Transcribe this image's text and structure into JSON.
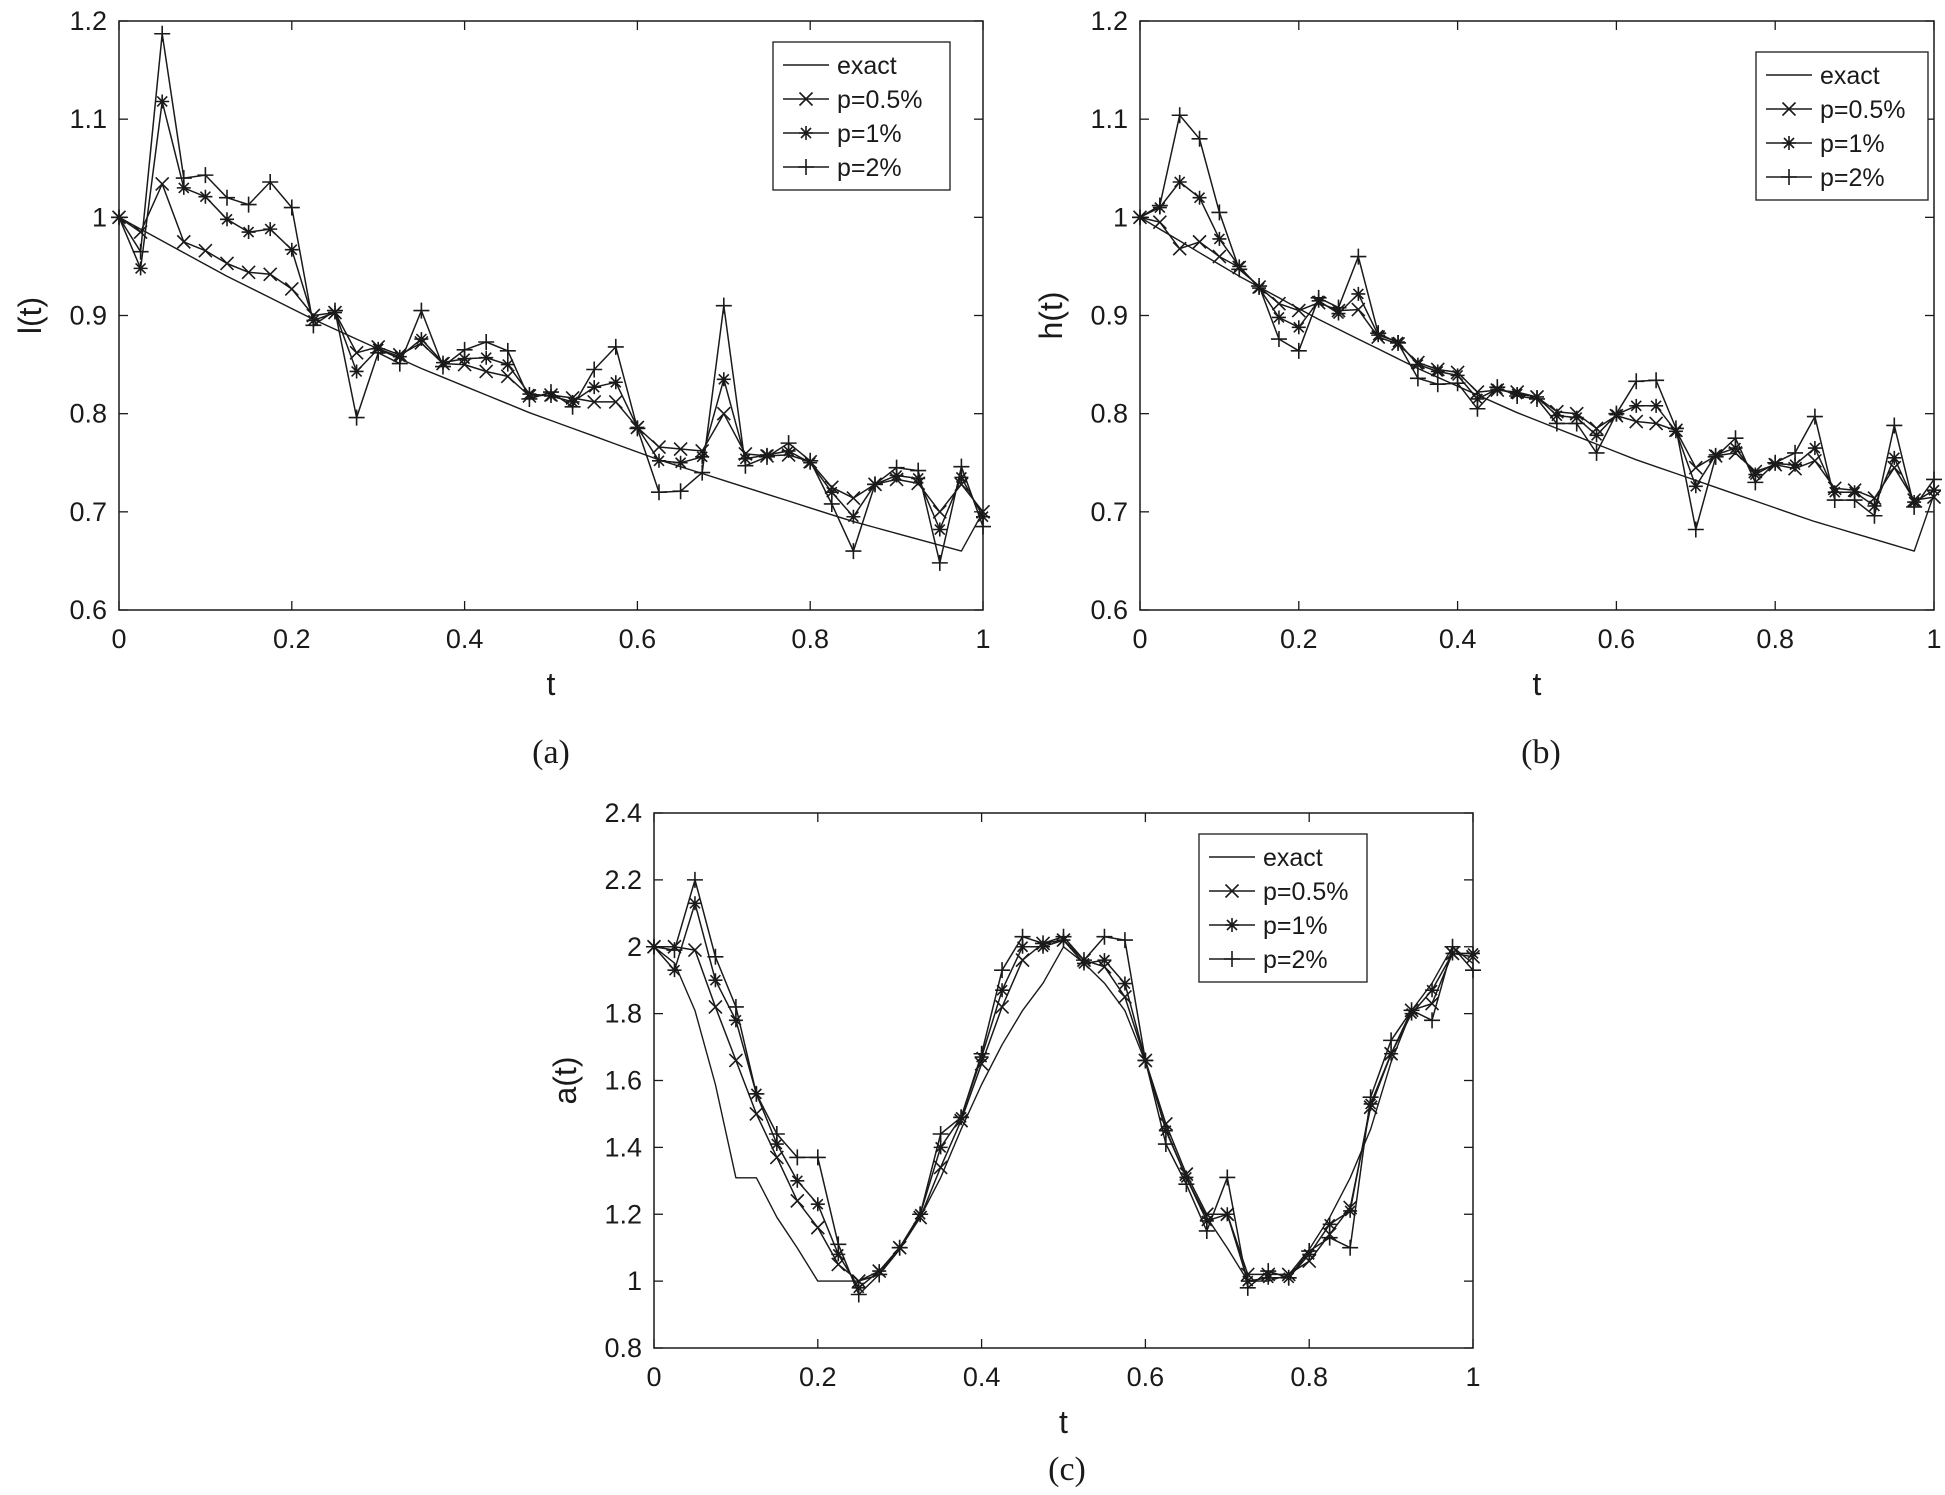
{
  "chart_data": [
    {
      "type": "line",
      "panel": "a",
      "caption": "(a)",
      "xlabel": "t",
      "ylabel": "l(t)",
      "xlim": [
        0,
        1
      ],
      "ylim": [
        0.6,
        1.2
      ],
      "xticks": [
        0,
        0.2,
        0.4,
        0.6,
        0.8,
        1
      ],
      "xtick_labels": [
        "0",
        "0.2",
        "0.4",
        "0.6",
        "0.8",
        "1"
      ],
      "yticks": [
        0.6,
        0.7,
        0.8,
        0.9,
        1.0,
        1.1,
        1.2
      ],
      "ytick_labels": [
        "0.6",
        "0.7",
        "0.8",
        "0.9",
        "1",
        "1.1",
        "1.2"
      ],
      "grid": false,
      "legend_position": "top-right",
      "x": [
        0,
        0.025,
        0.05,
        0.075,
        0.1,
        0.125,
        0.15,
        0.175,
        0.2,
        0.225,
        0.25,
        0.275,
        0.3,
        0.325,
        0.35,
        0.375,
        0.4,
        0.425,
        0.45,
        0.475,
        0.5,
        0.525,
        0.55,
        0.575,
        0.6,
        0.625,
        0.65,
        0.675,
        0.7,
        0.725,
        0.75,
        0.775,
        0.8,
        0.825,
        0.85,
        0.875,
        0.9,
        0.925,
        0.95,
        0.975,
        1.0
      ],
      "series": [
        {
          "name": "exact",
          "marker": "none",
          "values": [
            1.0,
            0.988,
            0.976,
            0.964,
            0.952,
            0.94,
            0.929,
            0.918,
            0.907,
            0.896,
            0.886,
            0.876,
            0.866,
            0.856,
            0.846,
            0.837,
            0.828,
            0.819,
            0.81,
            0.801,
            0.793,
            0.785,
            0.777,
            0.769,
            0.761,
            0.753,
            0.746,
            0.739,
            0.732,
            0.725,
            0.718,
            0.711,
            0.704,
            0.697,
            0.69,
            0.684,
            0.678,
            0.672,
            0.666,
            0.66,
            0.7
          ]
        },
        {
          "name": "p=0.5%",
          "marker": "x",
          "values": [
            1.0,
            0.985,
            1.034,
            0.975,
            0.966,
            0.953,
            0.944,
            0.942,
            0.927,
            0.9,
            0.903,
            0.862,
            0.868,
            0.86,
            0.872,
            0.851,
            0.85,
            0.843,
            0.838,
            0.818,
            0.819,
            0.816,
            0.812,
            0.812,
            0.786,
            0.766,
            0.764,
            0.762,
            0.8,
            0.759,
            0.757,
            0.758,
            0.751,
            0.725,
            0.714,
            0.728,
            0.733,
            0.729,
            0.7,
            0.728,
            0.7
          ]
        },
        {
          "name": "p=1%",
          "marker": "*",
          "values": [
            1.0,
            0.948,
            1.118,
            1.03,
            1.021,
            0.998,
            0.985,
            0.988,
            0.967,
            0.895,
            0.903,
            0.843,
            0.866,
            0.858,
            0.876,
            0.852,
            0.856,
            0.857,
            0.85,
            0.82,
            0.818,
            0.812,
            0.827,
            0.832,
            0.786,
            0.752,
            0.75,
            0.756,
            0.835,
            0.754,
            0.758,
            0.762,
            0.75,
            0.72,
            0.695,
            0.728,
            0.737,
            0.734,
            0.682,
            0.735,
            0.695
          ]
        },
        {
          "name": "p=2%",
          "marker": "+",
          "values": [
            1.0,
            0.965,
            1.187,
            1.04,
            1.043,
            1.02,
            1.013,
            1.036,
            1.01,
            0.89,
            0.905,
            0.796,
            0.862,
            0.851,
            0.905,
            0.848,
            0.865,
            0.873,
            0.864,
            0.815,
            0.822,
            0.807,
            0.845,
            0.868,
            0.785,
            0.72,
            0.721,
            0.74,
            0.91,
            0.747,
            0.756,
            0.77,
            0.752,
            0.708,
            0.66,
            0.728,
            0.745,
            0.742,
            0.648,
            0.746,
            0.685
          ]
        }
      ]
    },
    {
      "type": "line",
      "panel": "b",
      "caption": "(b)",
      "xlabel": "t",
      "ylabel": "h(t)",
      "xlim": [
        0,
        1
      ],
      "ylim": [
        0.6,
        1.2
      ],
      "xticks": [
        0,
        0.2,
        0.4,
        0.6,
        0.8,
        1
      ],
      "xtick_labels": [
        "0",
        "0.2",
        "0.4",
        "0.6",
        "0.8",
        "1"
      ],
      "yticks": [
        0.6,
        0.7,
        0.8,
        0.9,
        1.0,
        1.1,
        1.2
      ],
      "ytick_labels": [
        "0.6",
        "0.7",
        "0.8",
        "0.9",
        "1",
        "1.1",
        "1.2"
      ],
      "grid": false,
      "legend_position": "top-right",
      "x": [
        0,
        0.025,
        0.05,
        0.075,
        0.1,
        0.125,
        0.15,
        0.175,
        0.2,
        0.225,
        0.25,
        0.275,
        0.3,
        0.325,
        0.35,
        0.375,
        0.4,
        0.425,
        0.45,
        0.475,
        0.5,
        0.525,
        0.55,
        0.575,
        0.6,
        0.625,
        0.65,
        0.675,
        0.7,
        0.725,
        0.75,
        0.775,
        0.8,
        0.825,
        0.85,
        0.875,
        0.9,
        0.925,
        0.95,
        0.975,
        1.0
      ],
      "series": [
        {
          "name": "exact",
          "marker": "none",
          "values": [
            1.0,
            0.988,
            0.976,
            0.964,
            0.952,
            0.94,
            0.929,
            0.918,
            0.907,
            0.896,
            0.886,
            0.876,
            0.866,
            0.856,
            0.846,
            0.837,
            0.828,
            0.819,
            0.81,
            0.801,
            0.793,
            0.785,
            0.777,
            0.769,
            0.761,
            0.753,
            0.746,
            0.739,
            0.732,
            0.725,
            0.718,
            0.711,
            0.704,
            0.697,
            0.69,
            0.684,
            0.678,
            0.672,
            0.666,
            0.66,
            0.718
          ]
        },
        {
          "name": "p=0.5%",
          "marker": "x",
          "values": [
            1.0,
            0.995,
            0.968,
            0.975,
            0.96,
            0.949,
            0.929,
            0.912,
            0.905,
            0.913,
            0.905,
            0.906,
            0.878,
            0.871,
            0.852,
            0.845,
            0.842,
            0.822,
            0.824,
            0.822,
            0.817,
            0.802,
            0.8,
            0.785,
            0.798,
            0.792,
            0.79,
            0.783,
            0.745,
            0.757,
            0.76,
            0.741,
            0.748,
            0.744,
            0.752,
            0.724,
            0.722,
            0.714,
            0.745,
            0.712,
            0.715
          ]
        },
        {
          "name": "p=1%",
          "marker": "*",
          "values": [
            1.0,
            1.01,
            1.036,
            1.02,
            0.978,
            0.95,
            0.928,
            0.898,
            0.888,
            0.915,
            0.902,
            0.922,
            0.88,
            0.873,
            0.85,
            0.843,
            0.839,
            0.815,
            0.825,
            0.82,
            0.817,
            0.798,
            0.796,
            0.778,
            0.799,
            0.808,
            0.808,
            0.782,
            0.726,
            0.758,
            0.765,
            0.738,
            0.749,
            0.748,
            0.765,
            0.72,
            0.72,
            0.706,
            0.755,
            0.71,
            0.722
          ]
        },
        {
          "name": "p=2%",
          "marker": "+",
          "values": [
            1.0,
            1.012,
            1.104,
            1.08,
            1.005,
            0.947,
            0.93,
            0.876,
            0.864,
            0.918,
            0.908,
            0.96,
            0.882,
            0.872,
            0.836,
            0.83,
            0.831,
            0.805,
            0.827,
            0.818,
            0.815,
            0.79,
            0.79,
            0.76,
            0.8,
            0.833,
            0.834,
            0.785,
            0.682,
            0.756,
            0.775,
            0.73,
            0.75,
            0.76,
            0.797,
            0.712,
            0.712,
            0.696,
            0.788,
            0.705,
            0.733
          ]
        }
      ]
    },
    {
      "type": "line",
      "panel": "c",
      "caption": "(c)",
      "xlabel": "t",
      "ylabel": "a(t)",
      "xlim": [
        0,
        1
      ],
      "ylim": [
        0.8,
        2.4
      ],
      "xticks": [
        0,
        0.2,
        0.4,
        0.6,
        0.8,
        1
      ],
      "xtick_labels": [
        "0",
        "0.2",
        "0.4",
        "0.6",
        "0.8",
        "1"
      ],
      "yticks": [
        0.8,
        1.0,
        1.2,
        1.4,
        1.6,
        1.8,
        2.0,
        2.2,
        2.4
      ],
      "ytick_labels": [
        "0.8",
        "1",
        "1.2",
        "1.4",
        "1.6",
        "1.8",
        "2",
        "2.2",
        "2.4"
      ],
      "grid": false,
      "legend_position": "top-right",
      "x": [
        0,
        0.025,
        0.05,
        0.075,
        0.1,
        0.125,
        0.15,
        0.175,
        0.2,
        0.225,
        0.25,
        0.275,
        0.3,
        0.325,
        0.35,
        0.375,
        0.4,
        0.425,
        0.45,
        0.475,
        0.5,
        0.525,
        0.55,
        0.575,
        0.6,
        0.625,
        0.65,
        0.675,
        0.7,
        0.725,
        0.75,
        0.775,
        0.8,
        0.825,
        0.85,
        0.875,
        0.9,
        0.925,
        0.95,
        0.975,
        1.0
      ],
      "series": [
        {
          "name": "exact",
          "marker": "none",
          "values": [
            2.0,
            1.951,
            1.809,
            1.588,
            1.309,
            1.309,
            1.191,
            1.099,
            1.0,
            1.0,
            1.0,
            1.019,
            1.095,
            1.191,
            1.309,
            1.454,
            1.588,
            1.707,
            1.809,
            1.891,
            2.0,
            1.951,
            1.891,
            1.809,
            1.655,
            1.454,
            1.309,
            1.191,
            1.099,
            1.0,
            1.0,
            1.019,
            1.095,
            1.191,
            1.309,
            1.454,
            1.655,
            1.809,
            1.891,
            2.0,
            1.95
          ]
        },
        {
          "name": "p=0.5%",
          "marker": "x",
          "values": [
            2.0,
            2.0,
            1.99,
            1.82,
            1.66,
            1.5,
            1.37,
            1.24,
            1.16,
            1.05,
            1.0,
            1.03,
            1.1,
            1.19,
            1.34,
            1.48,
            1.65,
            1.82,
            1.96,
            2.01,
            2.02,
            1.96,
            1.94,
            1.85,
            1.66,
            1.47,
            1.32,
            1.2,
            1.2,
            1.02,
            1.02,
            1.02,
            1.06,
            1.14,
            1.22,
            1.52,
            1.68,
            1.81,
            1.83,
            1.98,
            1.97
          ]
        },
        {
          "name": "p=1%",
          "marker": "*",
          "values": [
            2.0,
            1.93,
            2.13,
            1.9,
            1.78,
            1.56,
            1.41,
            1.3,
            1.23,
            1.08,
            0.98,
            1.03,
            1.1,
            1.2,
            1.4,
            1.49,
            1.67,
            1.87,
            2.0,
            2.0,
            2.02,
            1.95,
            1.96,
            1.89,
            1.66,
            1.45,
            1.31,
            1.18,
            1.2,
            1.0,
            1.01,
            1.01,
            1.08,
            1.17,
            1.21,
            1.53,
            1.68,
            1.8,
            1.87,
            1.98,
            1.98
          ]
        },
        {
          "name": "p=2%",
          "marker": "+",
          "values": [
            2.0,
            1.99,
            2.2,
            1.97,
            1.82,
            1.56,
            1.44,
            1.37,
            1.37,
            1.11,
            0.96,
            1.02,
            1.1,
            1.2,
            1.44,
            1.49,
            1.68,
            1.93,
            2.03,
            2.01,
            2.03,
            1.96,
            2.03,
            2.02,
            1.66,
            1.41,
            1.29,
            1.15,
            1.31,
            0.98,
            1.03,
            1.01,
            1.09,
            1.13,
            1.1,
            1.55,
            1.72,
            1.81,
            1.78,
            2.0,
            1.93
          ]
        }
      ]
    }
  ]
}
